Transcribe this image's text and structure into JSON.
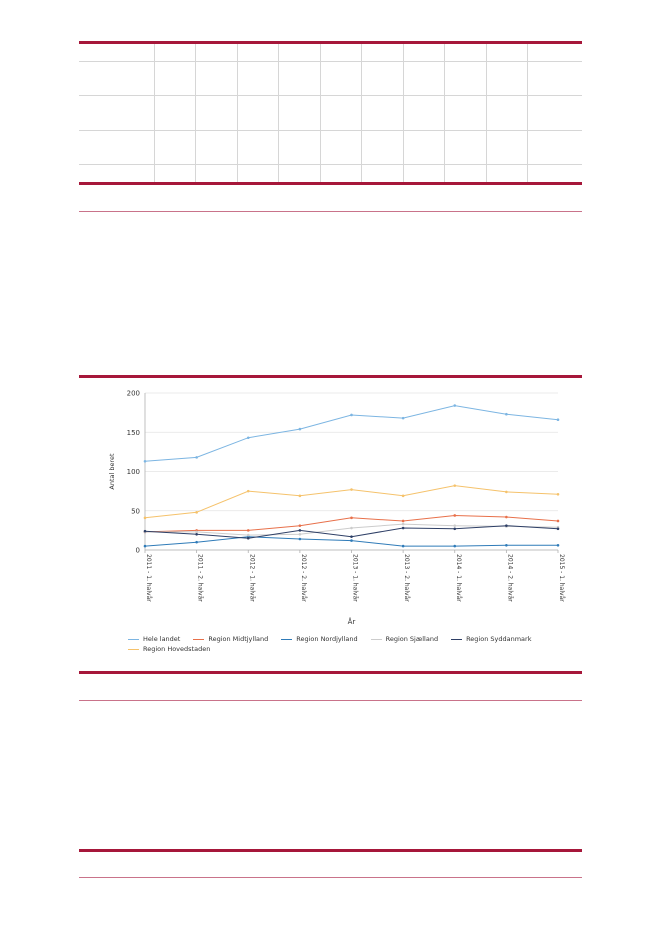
{
  "chart_data": {
    "type": "line",
    "title": "",
    "xlabel": "År",
    "ylabel": "Antal beret",
    "ylim": [
      0,
      200
    ],
    "yticks": [
      "0",
      "50",
      "100",
      "150",
      "200"
    ],
    "grid": true,
    "legend_position": "bottom",
    "categories": [
      "2011 - 1. halvår",
      "2011 - 2. halvår",
      "2012 - 1. halvår",
      "2012 - 2. halvår",
      "2013 - 1. halvår",
      "2013 - 2. halvår",
      "2014 - 1. halvår",
      "2014 - 2. halvår",
      "2015 - 1. halvår"
    ],
    "series": [
      {
        "name": "Hele landet",
        "color": "#7cb5e2",
        "values": [
          113,
          118,
          143,
          154,
          172,
          168,
          184,
          173,
          166
        ]
      },
      {
        "name": "Region Hovedstaden",
        "color": "#f5c26b",
        "values": [
          41,
          48,
          75,
          69,
          77,
          69,
          82,
          74,
          71
        ]
      },
      {
        "name": "Region Midtjylland",
        "color": "#e8704a",
        "values": [
          23,
          25,
          25,
          31,
          41,
          37,
          44,
          42,
          37
        ]
      },
      {
        "name": "Region Nordjylland",
        "color": "#2f7bb8",
        "values": [
          5,
          10,
          17,
          14,
          12,
          5,
          5,
          6,
          6
        ]
      },
      {
        "name": "Region Sjælland",
        "color": "#cccccc",
        "values": [
          23,
          23,
          19,
          20,
          28,
          33,
          31,
          30,
          29
        ]
      },
      {
        "name": "Region Syddanmark",
        "color": "#2e3f66",
        "values": [
          24,
          20,
          15,
          25,
          17,
          28,
          27,
          31,
          27
        ]
      }
    ]
  }
}
